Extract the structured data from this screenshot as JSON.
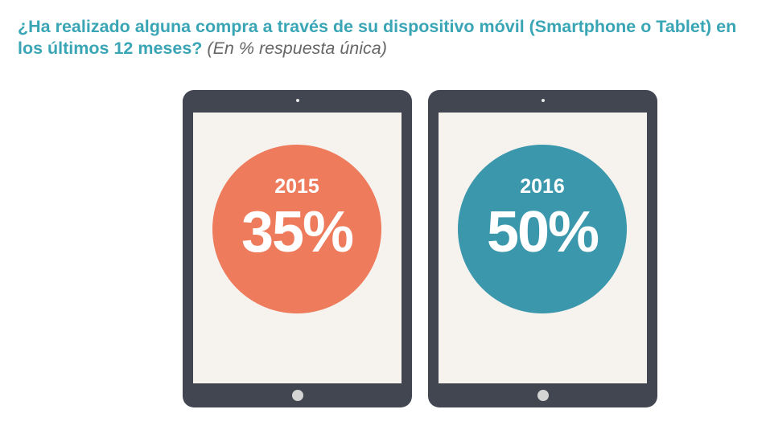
{
  "title": {
    "main": "¿Ha realizado alguna compra a través de su dispositivo móvil (Smartphone o Tablet)  en los últimos 12 meses?",
    "note": "(En % respuesta única)"
  },
  "colors": {
    "title": "#3aa5b5",
    "tablet_frame": "#414651",
    "screen": "#f6f3ef",
    "circle_2015": "#ee7b5b",
    "circle_2016": "#3b97ab"
  },
  "chart_data": {
    "type": "bar",
    "categories": [
      "2015",
      "2016"
    ],
    "values": [
      35,
      50
    ],
    "labels": [
      "35%",
      "50%"
    ],
    "unit": "%"
  }
}
